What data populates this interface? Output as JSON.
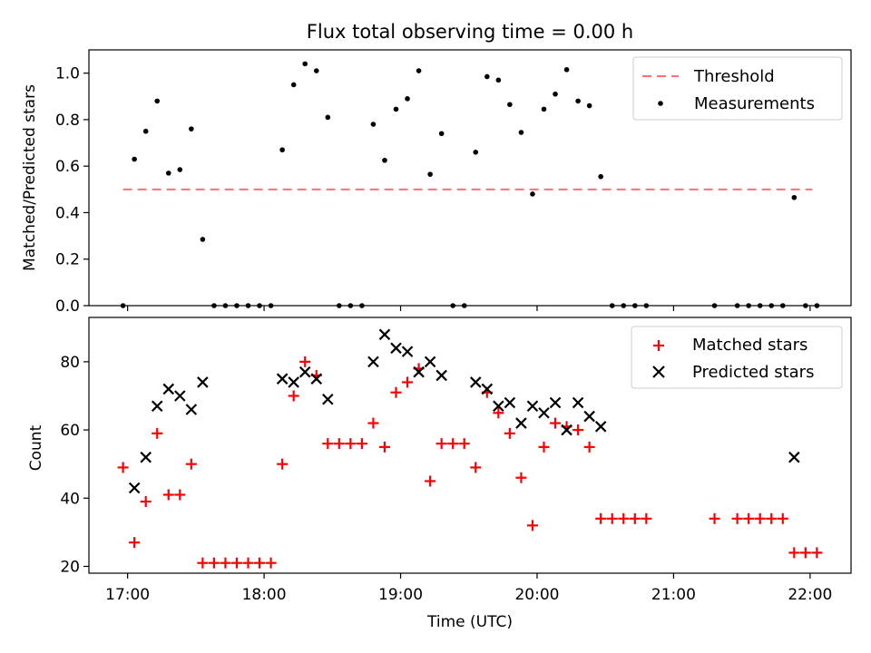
{
  "chart_data": [
    {
      "type": "scatter",
      "title": "Flux total observing time = 0.00 h",
      "ylabel": "Matched/Predicted stars",
      "xlabel": "",
      "xlim": [
        "16:43",
        "22:18"
      ],
      "ylim": [
        0,
        1.1
      ],
      "yticks": [
        0.0,
        0.2,
        0.4,
        0.6,
        0.8,
        1.0
      ],
      "ytick_labels": [
        "0.0",
        "0.2",
        "0.4",
        "0.6",
        "0.8",
        "1.0"
      ],
      "legend_position": "top-right",
      "threshold": {
        "name": "Threshold",
        "value": 0.5,
        "x_start": "16:58",
        "x_end": "22:01",
        "color": "#ff7070"
      },
      "series": [
        {
          "name": "Measurements",
          "color": "#000000",
          "points": [
            [
              "16:58",
              0.0
            ],
            [
              "17:03",
              0.63
            ],
            [
              "17:08",
              0.75
            ],
            [
              "17:13",
              0.88
            ],
            [
              "17:18",
              0.57
            ],
            [
              "17:23",
              0.585
            ],
            [
              "17:28",
              0.76
            ],
            [
              "17:33",
              0.285
            ],
            [
              "17:38",
              0.0
            ],
            [
              "17:43",
              0.0
            ],
            [
              "17:48",
              0.0
            ],
            [
              "17:53",
              0.0
            ],
            [
              "17:58",
              0.0
            ],
            [
              "18:03",
              0.0
            ],
            [
              "18:08",
              0.67
            ],
            [
              "18:13",
              0.95
            ],
            [
              "18:18",
              1.04
            ],
            [
              "18:23",
              1.01
            ],
            [
              "18:28",
              0.81
            ],
            [
              "18:33",
              0.0
            ],
            [
              "18:38",
              0.0
            ],
            [
              "18:43",
              0.0
            ],
            [
              "18:48",
              0.78
            ],
            [
              "18:53",
              0.625
            ],
            [
              "18:58",
              0.845
            ],
            [
              "19:03",
              0.89
            ],
            [
              "19:08",
              1.01
            ],
            [
              "19:13",
              0.565
            ],
            [
              "19:18",
              0.74
            ],
            [
              "19:23",
              0.0
            ],
            [
              "19:28",
              0.0
            ],
            [
              "19:33",
              0.66
            ],
            [
              "19:38",
              0.985
            ],
            [
              "19:43",
              0.97
            ],
            [
              "19:48",
              0.865
            ],
            [
              "19:53",
              0.745
            ],
            [
              "19:58",
              0.48
            ],
            [
              "20:03",
              0.845
            ],
            [
              "20:08",
              0.91
            ],
            [
              "20:13",
              1.015
            ],
            [
              "20:18",
              0.88
            ],
            [
              "20:23",
              0.86
            ],
            [
              "20:28",
              0.555
            ],
            [
              "20:33",
              0.0
            ],
            [
              "20:38",
              0.0
            ],
            [
              "20:43",
              0.0
            ],
            [
              "20:48",
              0.0
            ],
            [
              "21:18",
              0.0
            ],
            [
              "21:28",
              0.0
            ],
            [
              "21:33",
              0.0
            ],
            [
              "21:38",
              0.0
            ],
            [
              "21:43",
              0.0
            ],
            [
              "21:48",
              0.0
            ],
            [
              "21:53",
              0.465
            ],
            [
              "21:58",
              0.0
            ],
            [
              "22:03",
              0.0
            ]
          ]
        }
      ]
    },
    {
      "type": "scatter",
      "title": "",
      "ylabel": "Count",
      "xlabel": "Time (UTC)",
      "xlim": [
        "16:43",
        "22:18"
      ],
      "ylim": [
        18,
        93
      ],
      "yticks": [
        20,
        40,
        60,
        80
      ],
      "ytick_labels": [
        "20",
        "40",
        "60",
        "80"
      ],
      "xticks": [
        "17:00",
        "18:00",
        "19:00",
        "20:00",
        "21:00",
        "22:00"
      ],
      "legend_position": "top-right",
      "series": [
        {
          "name": "Matched stars",
          "marker": "plus",
          "color": "#ff0000",
          "points": [
            [
              "16:58",
              49
            ],
            [
              "17:03",
              27
            ],
            [
              "17:08",
              39
            ],
            [
              "17:13",
              59
            ],
            [
              "17:18",
              41
            ],
            [
              "17:23",
              41
            ],
            [
              "17:28",
              50
            ],
            [
              "17:33",
              21
            ],
            [
              "17:38",
              21
            ],
            [
              "17:43",
              21
            ],
            [
              "17:48",
              21
            ],
            [
              "17:53",
              21
            ],
            [
              "17:58",
              21
            ],
            [
              "18:03",
              21
            ],
            [
              "18:08",
              50
            ],
            [
              "18:13",
              70
            ],
            [
              "18:18",
              80
            ],
            [
              "18:23",
              76
            ],
            [
              "18:28",
              56
            ],
            [
              "18:33",
              56
            ],
            [
              "18:38",
              56
            ],
            [
              "18:43",
              56
            ],
            [
              "18:48",
              62
            ],
            [
              "18:53",
              55
            ],
            [
              "18:58",
              71
            ],
            [
              "19:03",
              74
            ],
            [
              "19:08",
              78
            ],
            [
              "19:13",
              45
            ],
            [
              "19:18",
              56
            ],
            [
              "19:23",
              56
            ],
            [
              "19:28",
              56
            ],
            [
              "19:33",
              49
            ],
            [
              "19:38",
              71
            ],
            [
              "19:43",
              65
            ],
            [
              "19:48",
              59
            ],
            [
              "19:53",
              46
            ],
            [
              "19:58",
              32
            ],
            [
              "20:03",
              55
            ],
            [
              "20:08",
              62
            ],
            [
              "20:13",
              61
            ],
            [
              "20:18",
              60
            ],
            [
              "20:23",
              55
            ],
            [
              "20:28",
              34
            ],
            [
              "20:33",
              34
            ],
            [
              "20:38",
              34
            ],
            [
              "20:43",
              34
            ],
            [
              "20:48",
              34
            ],
            [
              "21:18",
              34
            ],
            [
              "21:28",
              34
            ],
            [
              "21:33",
              34
            ],
            [
              "21:38",
              34
            ],
            [
              "21:43",
              34
            ],
            [
              "21:48",
              34
            ],
            [
              "21:53",
              24
            ],
            [
              "21:58",
              24
            ],
            [
              "22:03",
              24
            ]
          ]
        },
        {
          "name": "Predicted stars",
          "marker": "x",
          "color": "#000000",
          "points": [
            [
              "17:03",
              43
            ],
            [
              "17:08",
              52
            ],
            [
              "17:13",
              67
            ],
            [
              "17:18",
              72
            ],
            [
              "17:23",
              70
            ],
            [
              "17:28",
              66
            ],
            [
              "17:33",
              74
            ],
            [
              "18:08",
              75
            ],
            [
              "18:13",
              74
            ],
            [
              "18:18",
              77
            ],
            [
              "18:23",
              75
            ],
            [
              "18:28",
              69
            ],
            [
              "18:48",
              80
            ],
            [
              "18:53",
              88
            ],
            [
              "18:58",
              84
            ],
            [
              "19:03",
              83
            ],
            [
              "19:08",
              77
            ],
            [
              "19:13",
              80
            ],
            [
              "19:18",
              76
            ],
            [
              "19:33",
              74
            ],
            [
              "19:38",
              72
            ],
            [
              "19:43",
              67
            ],
            [
              "19:48",
              68
            ],
            [
              "19:53",
              62
            ],
            [
              "19:58",
              67
            ],
            [
              "20:03",
              65
            ],
            [
              "20:08",
              68
            ],
            [
              "20:13",
              60
            ],
            [
              "20:18",
              68
            ],
            [
              "20:23",
              64
            ],
            [
              "20:28",
              61
            ],
            [
              "21:53",
              52
            ]
          ]
        }
      ]
    }
  ]
}
